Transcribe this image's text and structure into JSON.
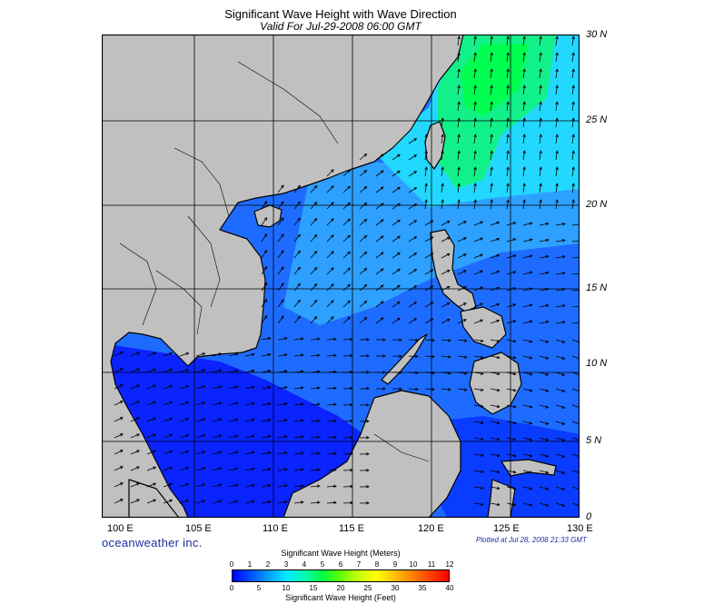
{
  "title": "Significant Wave Height with Wave Direction",
  "subtitle": "Valid For Jul-29-2008 06:00 GMT",
  "branding": "oceanweather inc.",
  "plotted_note": "Plotted at Jul 28, 2008 21:33 GMT",
  "latitude_labels": [
    "30 N",
    "25 N",
    "20 N",
    "15 N",
    "10 N",
    "5 N",
    "0"
  ],
  "longitude_labels": [
    "100 E",
    "105 E",
    "110 E",
    "115 E",
    "120 E",
    "125 E",
    "130 E"
  ],
  "colorbar": {
    "meters_title": "Significant Wave Height (Meters)",
    "meters_ticks": [
      "0",
      "1",
      "2",
      "3",
      "4",
      "5",
      "6",
      "7",
      "8",
      "9",
      "10",
      "11",
      "12"
    ],
    "feet_title": "Significant Wave Height (Feet)",
    "feet_ticks": [
      "0",
      "5",
      "10",
      "15",
      "20",
      "25",
      "30",
      "35",
      "40"
    ],
    "colors": [
      "#0000ff",
      "#0050ff",
      "#00a0ff",
      "#00e8ff",
      "#00ffb0",
      "#00ff40",
      "#60ff00",
      "#c8ff00",
      "#ffff00",
      "#ffc000",
      "#ff8000",
      "#ff4000",
      "#ff0000"
    ]
  },
  "colors": {
    "land": "#c0c0c0",
    "deep_blue": "#0a23ff",
    "mid_blue": "#1e6cff",
    "light_blue": "#2ea0ff",
    "cyan": "#22d8ff",
    "green": "#12f08a",
    "dark_water": "#000098"
  }
}
